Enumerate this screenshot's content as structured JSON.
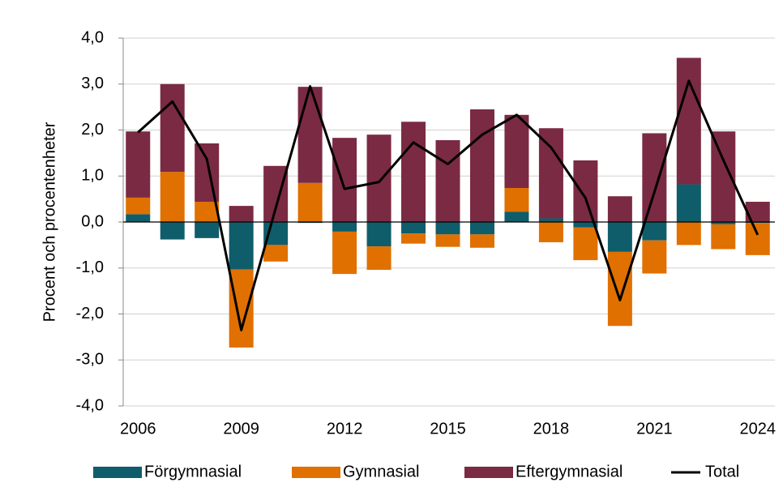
{
  "chart_data": {
    "type": "bar",
    "stacked": true,
    "ylabel": "Procent och procentenheter",
    "categories": [
      "2006",
      null,
      null,
      "2009",
      null,
      null,
      "2012",
      null,
      null,
      "2015",
      null,
      null,
      "2018",
      null,
      null,
      "2021",
      null,
      null,
      "2024"
    ],
    "ylim": [
      -4,
      4
    ],
    "yticks": [
      {
        "value": -4,
        "label": "-4,0"
      },
      {
        "value": -3,
        "label": "-3,0"
      },
      {
        "value": -2,
        "label": "-2,0"
      },
      {
        "value": -1,
        "label": "-1,0"
      },
      {
        "value": 0,
        "label": "0,0"
      },
      {
        "value": 1,
        "label": "1,0"
      },
      {
        "value": 2,
        "label": "2,0"
      },
      {
        "value": 3,
        "label": "3,0"
      },
      {
        "value": 4,
        "label": "4,0"
      }
    ],
    "grid": true,
    "legend": "bottom",
    "series": [
      {
        "name": "Förgymnasial",
        "color": "#0f5d6b",
        "values": [
          0.17,
          -0.38,
          -0.35,
          -1.03,
          -0.5,
          -0.02,
          -0.21,
          -0.53,
          -0.25,
          -0.27,
          -0.27,
          0.22,
          0.08,
          -0.12,
          -0.65,
          -0.4,
          0.82,
          -0.05,
          -0.02
        ]
      },
      {
        "name": "Gymnasial",
        "color": "#e07000",
        "values": [
          0.36,
          1.09,
          0.44,
          -1.7,
          -0.36,
          0.85,
          -0.92,
          -0.51,
          -0.22,
          -0.27,
          -0.29,
          0.52,
          -0.44,
          -0.71,
          -1.61,
          -0.72,
          -0.5,
          -0.54,
          -0.7
        ]
      },
      {
        "name": "Eftergymnasial",
        "color": "#7b2a43",
        "values": [
          1.44,
          1.91,
          1.27,
          0.35,
          1.22,
          2.09,
          1.83,
          1.9,
          2.18,
          1.78,
          2.45,
          1.59,
          1.96,
          1.34,
          0.56,
          1.93,
          2.75,
          1.97,
          0.44
        ]
      },
      {
        "name": "Total",
        "color": "#000000",
        "type": "line",
        "values": [
          1.95,
          2.62,
          1.37,
          -2.35,
          0.3,
          2.95,
          0.72,
          0.87,
          1.73,
          1.26,
          1.9,
          2.33,
          1.62,
          0.52,
          -1.7,
          0.65,
          3.07,
          1.35,
          -0.28
        ]
      }
    ]
  }
}
